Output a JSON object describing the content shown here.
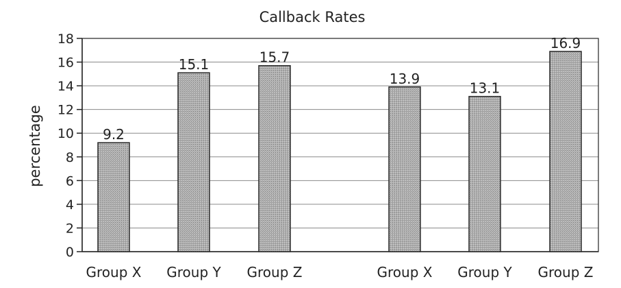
{
  "chart_data": {
    "type": "bar",
    "title": "Callback Rates",
    "xlabel": "",
    "ylabel": "percentage",
    "ylim": [
      0,
      18
    ],
    "yticks": [
      0,
      2,
      4,
      6,
      8,
      10,
      12,
      14,
      16,
      18
    ],
    "grid": true,
    "legend": "none",
    "bar_color": "#a9a9a9",
    "groups": [
      {
        "categories": [
          "Group X",
          "Group Y",
          "Group Z"
        ],
        "values": [
          9.2,
          15.1,
          15.7
        ],
        "labels": [
          "9.2",
          "15.1",
          "15.7"
        ]
      },
      {
        "categories": [
          "Group X",
          "Group Y",
          "Group Z"
        ],
        "values": [
          13.9,
          13.1,
          16.9
        ],
        "labels": [
          "13.9",
          "13.1",
          "16.9"
        ]
      }
    ]
  }
}
